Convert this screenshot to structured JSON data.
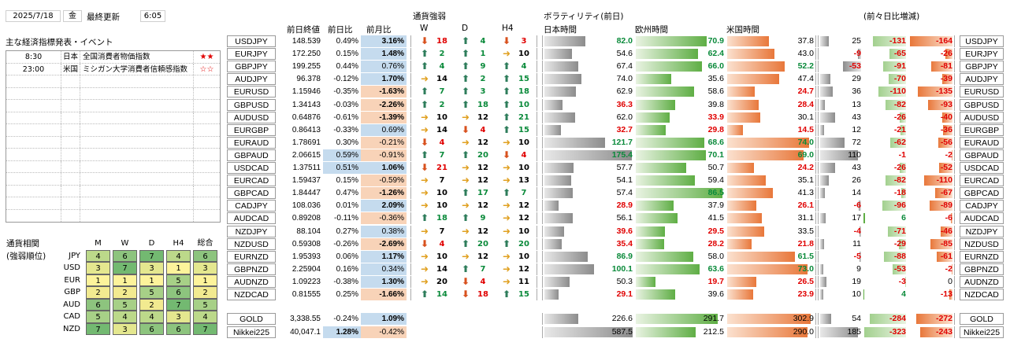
{
  "header": {
    "date": "2025/7/18",
    "weekday": "金",
    "updated_label": "最終更新",
    "updated_time": "6:05"
  },
  "events": {
    "title": "主な経済指標発表・イベント",
    "items": [
      {
        "time": "8:30",
        "country": "日本",
        "name": "全国消費者物価指数",
        "stars": "★★"
      },
      {
        "time": "23:00",
        "country": "米国",
        "name": "ミシガン大学消費者信頼感指数",
        "stars": "☆☆"
      }
    ]
  },
  "columns": {
    "prev_close": "前日終値",
    "day_chg": "前日比",
    "month_chg": "前月比",
    "strength": "通貨強弱",
    "W": "W",
    "D": "D",
    "H4": "H4",
    "vol": "ボラティリティ(前日)",
    "jp": "日本時間",
    "eu": "欧州時間",
    "us": "米国時間",
    "dd": "(前々日比増減)"
  },
  "rows": [
    {
      "pair": "USDJPY",
      "close": "148.539",
      "day": "0.49%",
      "mon": "3.16%",
      "w": [
        "dn",
        "18"
      ],
      "d": [
        "up",
        "4"
      ],
      "h": [
        "dn",
        "3"
      ],
      "jp": "82.0",
      "eu": "70.9",
      "us": "37.8",
      "c1": "25",
      "c2": "-131",
      "c3": "-164"
    },
    {
      "pair": "EURJPY",
      "close": "172.250",
      "day": "0.15%",
      "mon": "1.48%",
      "w": [
        "up",
        "2"
      ],
      "d": [
        "up",
        "1"
      ],
      "h": [
        "fl",
        "10"
      ],
      "jp": "54.6",
      "eu": "62.4",
      "us": "43.0",
      "c1": "-9",
      "c2": "-65",
      "c3": "-26"
    },
    {
      "pair": "GBPJPY",
      "close": "199.255",
      "day": "0.44%",
      "mon": "0.76%",
      "w": [
        "up",
        "4"
      ],
      "d": [
        "up",
        "9"
      ],
      "h": [
        "up",
        "4"
      ],
      "jp": "67.4",
      "eu": "66.0",
      "us": "52.2",
      "c1": "-53",
      "c2": "-91",
      "c3": "-81"
    },
    {
      "pair": "AUDJPY",
      "close": "96.378",
      "day": "-0.12%",
      "mon": "1.70%",
      "w": [
        "fl",
        "14"
      ],
      "d": [
        "up",
        "2"
      ],
      "h": [
        "up",
        "15"
      ],
      "jp": "74.0",
      "eu": "35.6",
      "us": "47.4",
      "c1": "29",
      "c2": "-70",
      "c3": "-39"
    },
    {
      "pair": "EURUSD",
      "close": "1.15946",
      "day": "-0.35%",
      "mon": "-1.63%",
      "w": [
        "up",
        "7"
      ],
      "d": [
        "up",
        "3"
      ],
      "h": [
        "up",
        "18"
      ],
      "jp": "62.9",
      "eu": "58.6",
      "us": "24.7",
      "c1": "36",
      "c2": "-110",
      "c3": "-135"
    },
    {
      "pair": "GBPUSD",
      "close": "1.34143",
      "day": "-0.03%",
      "mon": "-2.26%",
      "w": [
        "up",
        "2"
      ],
      "d": [
        "up",
        "18"
      ],
      "h": [
        "up",
        "10"
      ],
      "jp": "36.3",
      "eu": "39.8",
      "us": "28.4",
      "c1": "13",
      "c2": "-82",
      "c3": "-93"
    },
    {
      "pair": "AUDUSD",
      "close": "0.64876",
      "day": "-0.61%",
      "mon": "-1.39%",
      "w": [
        "fl",
        "10"
      ],
      "d": [
        "fl",
        "12"
      ],
      "h": [
        "up",
        "21"
      ],
      "jp": "62.0",
      "eu": "33.9",
      "us": "30.1",
      "c1": "43",
      "c2": "-26",
      "c3": "-40"
    },
    {
      "pair": "EURGBP",
      "close": "0.86413",
      "day": "-0.33%",
      "mon": "0.69%",
      "w": [
        "fl",
        "14"
      ],
      "d": [
        "dn",
        "4"
      ],
      "h": [
        "up",
        "15"
      ],
      "jp": "32.7",
      "eu": "29.8",
      "us": "14.5",
      "c1": "12",
      "c2": "-21",
      "c3": "-36"
    },
    {
      "pair": "EURAUD",
      "close": "1.78691",
      "day": "0.30%",
      "mon": "-0.21%",
      "w": [
        "dn",
        "4"
      ],
      "d": [
        "fl",
        "12"
      ],
      "h": [
        "fl",
        "10"
      ],
      "jp": "121.7",
      "eu": "68.6",
      "us": "74.0",
      "c1": "72",
      "c2": "-62",
      "c3": "-56"
    },
    {
      "pair": "GBPAUD",
      "close": "2.06615",
      "day": "0.59%",
      "mon": "-0.91%",
      "w": [
        "up",
        "7"
      ],
      "d": [
        "up",
        "20"
      ],
      "h": [
        "dn",
        "4"
      ],
      "jp": "175.4",
      "eu": "70.1",
      "us": "69.0",
      "c1": "110",
      "c2": "-1",
      "c3": "-2"
    },
    {
      "pair": "USDCAD",
      "close": "1.37511",
      "day": "0.51%",
      "mon": "1.06%",
      "w": [
        "dn",
        "21"
      ],
      "d": [
        "fl",
        "12"
      ],
      "h": [
        "fl",
        "10"
      ],
      "jp": "57.7",
      "eu": "50.7",
      "us": "24.2",
      "c1": "43",
      "c2": "-26",
      "c3": "-52"
    },
    {
      "pair": "EURCAD",
      "close": "1.59437",
      "day": "0.15%",
      "mon": "-0.59%",
      "w": [
        "fl",
        "7"
      ],
      "d": [
        "fl",
        "12"
      ],
      "h": [
        "fl",
        "13"
      ],
      "jp": "54.1",
      "eu": "59.4",
      "us": "35.1",
      "c1": "26",
      "c2": "-82",
      "c3": "-110"
    },
    {
      "pair": "GBPCAD",
      "close": "1.84447",
      "day": "0.47%",
      "mon": "-1.26%",
      "w": [
        "fl",
        "10"
      ],
      "d": [
        "up",
        "17"
      ],
      "h": [
        "up",
        "7"
      ],
      "jp": "57.4",
      "eu": "86.5",
      "us": "41.3",
      "c1": "14",
      "c2": "-18",
      "c3": "-67"
    },
    {
      "pair": "CADJPY",
      "close": "108.036",
      "day": "0.01%",
      "mon": "2.09%",
      "w": [
        "fl",
        "10"
      ],
      "d": [
        "fl",
        "12"
      ],
      "h": [
        "fl",
        "12"
      ],
      "jp": "28.9",
      "eu": "37.9",
      "us": "26.1",
      "c1": "-6",
      "c2": "-96",
      "c3": "-89"
    },
    {
      "pair": "AUDCAD",
      "close": "0.89208",
      "day": "-0.11%",
      "mon": "-0.36%",
      "w": [
        "up",
        "18"
      ],
      "d": [
        "up",
        "9"
      ],
      "h": [
        "fl",
        "12"
      ],
      "jp": "56.1",
      "eu": "41.5",
      "us": "31.1",
      "c1": "17",
      "c2": "6",
      "c3": "-6"
    },
    {
      "pair": "NZDJPY",
      "close": "88.104",
      "day": "0.27%",
      "mon": "0.38%",
      "w": [
        "fl",
        "7"
      ],
      "d": [
        "fl",
        "12"
      ],
      "h": [
        "fl",
        "10"
      ],
      "jp": "39.6",
      "eu": "29.5",
      "us": "33.5",
      "c1": "-4",
      "c2": "-71",
      "c3": "-46"
    },
    {
      "pair": "NZDUSD",
      "close": "0.59308",
      "day": "-0.26%",
      "mon": "-2.69%",
      "w": [
        "dn",
        "4"
      ],
      "d": [
        "up",
        "20"
      ],
      "h": [
        "up",
        "20"
      ],
      "jp": "35.4",
      "eu": "28.2",
      "us": "21.8",
      "c1": "11",
      "c2": "-29",
      "c3": "-85"
    },
    {
      "pair": "EURNZD",
      "close": "1.95393",
      "day": "0.06%",
      "mon": "1.17%",
      "w": [
        "fl",
        "10"
      ],
      "d": [
        "fl",
        "12"
      ],
      "h": [
        "fl",
        "10"
      ],
      "jp": "86.9",
      "eu": "58.0",
      "us": "61.5",
      "c1": "-5",
      "c2": "-88",
      "c3": "-61"
    },
    {
      "pair": "GBPNZD",
      "close": "2.25904",
      "day": "0.16%",
      "mon": "0.34%",
      "w": [
        "fl",
        "14"
      ],
      "d": [
        "up",
        "7"
      ],
      "h": [
        "fl",
        "12"
      ],
      "jp": "100.1",
      "eu": "63.6",
      "us": "73.0",
      "c1": "9",
      "c2": "-53",
      "c3": "-2"
    },
    {
      "pair": "AUDNZD",
      "close": "1.09223",
      "day": "-0.38%",
      "mon": "1.30%",
      "w": [
        "fl",
        "20"
      ],
      "d": [
        "dn",
        "4"
      ],
      "h": [
        "fl",
        "11"
      ],
      "jp": "50.3",
      "eu": "19.7",
      "us": "26.5",
      "c1": "19",
      "c2": "-3",
      "c3": "0"
    },
    {
      "pair": "NZDCAD",
      "close": "0.81555",
      "day": "0.25%",
      "mon": "-1.66%",
      "w": [
        "up",
        "14"
      ],
      "d": [
        "dn",
        "18"
      ],
      "h": [
        "up",
        "15"
      ],
      "jp": "29.1",
      "eu": "39.6",
      "us": "23.9",
      "c1": "10",
      "c2": "4",
      "c3": "-13"
    }
  ],
  "extra": [
    {
      "pair": "GOLD",
      "close": "3,338.55",
      "day": "-0.24%",
      "mon": "1.09%",
      "jp": "226.6",
      "eu": "291.7",
      "us": "302.9",
      "c1": "54",
      "c2": "-284",
      "c3": "-272"
    },
    {
      "pair": "Nikkei225",
      "close": "40,047.1",
      "day": "1.28%",
      "mon": "-0.42%",
      "jp": "587.5",
      "eu": "212.5",
      "us": "290.0",
      "c1": "185",
      "c2": "-323",
      "c3": "-243"
    }
  ],
  "correlation": {
    "title1": "通貨相関",
    "title2": "(強弱順位)",
    "headers": [
      "M",
      "W",
      "D",
      "H4",
      "総合"
    ],
    "rows": [
      {
        "cur": "JPY",
        "vals": [
          "4",
          "6",
          "7",
          "4",
          "6"
        ]
      },
      {
        "cur": "USD",
        "vals": [
          "3",
          "7",
          "3",
          "1",
          "3"
        ]
      },
      {
        "cur": "EUR",
        "vals": [
          "1",
          "1",
          "1",
          "5",
          "1"
        ]
      },
      {
        "cur": "GBP",
        "vals": [
          "2",
          "2",
          "5",
          "6",
          "2"
        ]
      },
      {
        "cur": "AUD",
        "vals": [
          "6",
          "5",
          "2",
          "7",
          "5"
        ]
      },
      {
        "cur": "CAD",
        "vals": [
          "5",
          "4",
          "4",
          "3",
          "4"
        ]
      },
      {
        "cur": "NZD",
        "vals": [
          "7",
          "3",
          "6",
          "6",
          "7"
        ]
      }
    ]
  },
  "colors": {
    "up": "#2e7d5b",
    "down": "#d8511e",
    "flat": "#e0a020",
    "blue": "#c5dbee",
    "peach": "#f8d3b8",
    "red": "#e00000",
    "green": "#0a8a3a"
  }
}
